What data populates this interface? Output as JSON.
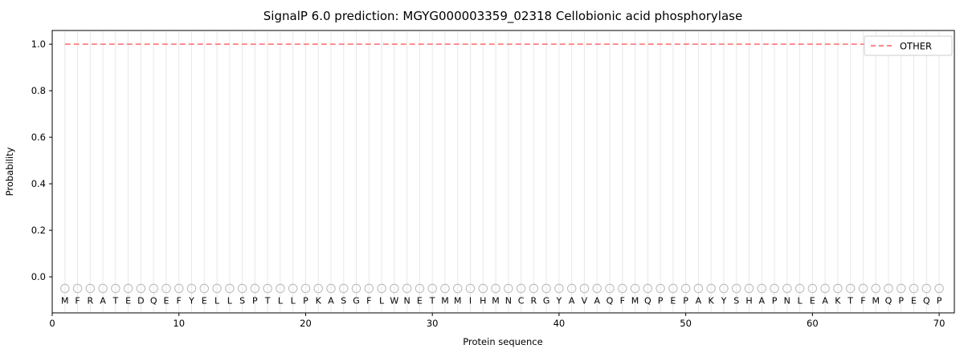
{
  "chart_data": {
    "type": "line",
    "title": "SignalP 6.0 prediction: MGYG000003359_02318 Cellobionic acid phosphorylase",
    "xlabel": "Protein sequence",
    "ylabel": "Probability",
    "xlim": [
      0,
      71.2
    ],
    "ylim": [
      -0.155,
      1.059
    ],
    "x_ticks": [
      0,
      10,
      20,
      30,
      40,
      50,
      60,
      70
    ],
    "y_ticks": [
      "0.0",
      "0.2",
      "0.4",
      "0.6",
      "0.8",
      "1.0"
    ],
    "grid": "vertical line per residue",
    "legend": {
      "position": "upper right",
      "entries": [
        {
          "label": "OTHER",
          "color": "#ff5d5d",
          "style": "dashed"
        }
      ]
    },
    "series": [
      {
        "name": "OTHER",
        "style": "dashed",
        "color": "#ff5d5d",
        "y_constant": 1.0,
        "x_start": 1,
        "x_end": 70
      }
    ],
    "sequence": "MFRATEDQEFYELLSPTLLPKASGFLWNETMMIHMNCRGYAVAQFMQPEPAKYSHAPNLEAKTFMQPEQP",
    "marker_y": -0.05,
    "marker_shape": "open-circle",
    "colors": {
      "grid": "#e8e8e8",
      "marker_stroke": "#bcbcbc",
      "axes_border": "#000000",
      "legend_border": "#cccccc"
    }
  }
}
